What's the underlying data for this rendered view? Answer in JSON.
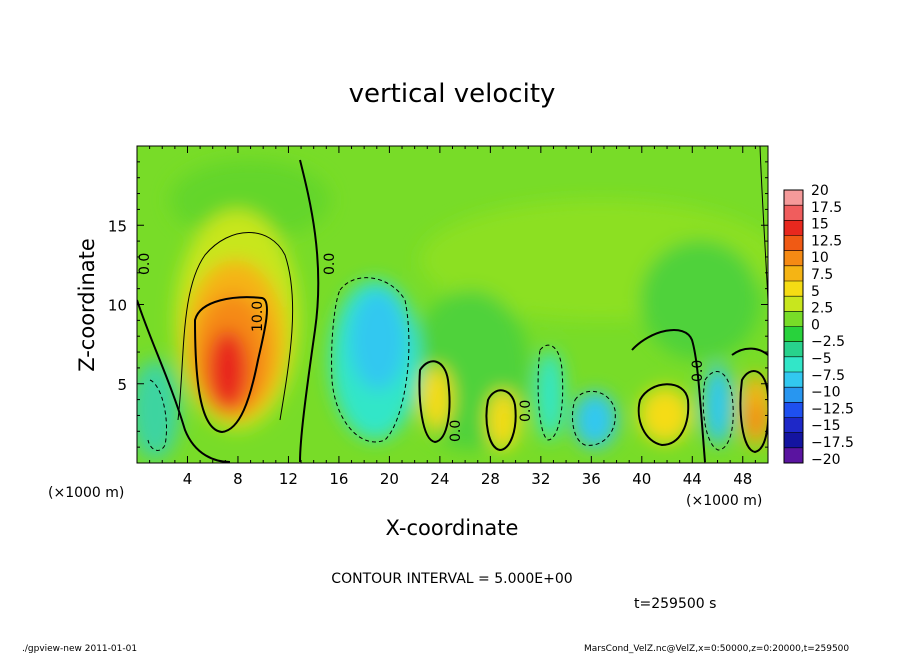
{
  "chart_data": {
    "type": "heatmap",
    "title": "vertical velocity",
    "xlabel": "X-coordinate",
    "ylabel": "Z-coordinate",
    "x_unit": "(×1000 m)",
    "z_unit": "(×1000 m)",
    "xlim": [
      0,
      50
    ],
    "ylim": [
      0,
      20
    ],
    "x_ticks": [
      "4",
      "8",
      "12",
      "16",
      "20",
      "24",
      "28",
      "32",
      "36",
      "40",
      "44",
      "48"
    ],
    "y_ticks": [
      "5",
      "10",
      "15"
    ],
    "colorbar_ticks": [
      "20",
      "17.5",
      "15",
      "12.5",
      "10",
      "7.5",
      "5",
      "2.5",
      "0",
      "−2.5",
      "−5",
      "−7.5",
      "−10",
      "−12.5",
      "−15",
      "−17.5",
      "−20"
    ],
    "colorbar_colors": [
      "#f59a9a",
      "#f05d5d",
      "#e8281e",
      "#f05a14",
      "#f58a14",
      "#f5b414",
      "#f5dc14",
      "#c8e61e",
      "#78dc28",
      "#28d23c",
      "#28d28c",
      "#32e6c8",
      "#32c8f0",
      "#2896f0",
      "#1e50f0",
      "#1e28c8",
      "#1414a0",
      "#5a14a0"
    ],
    "contour_interval_text": "CONTOUR INTERVAL = 5.000E+00",
    "contour_labels": [
      "10.0",
      "0.0",
      "0.0",
      "0.0",
      "0.0",
      "0.0"
    ],
    "time_text": "t=259500 s",
    "features": [
      {
        "name": "updraft",
        "x": 7.5,
        "z": 6.5,
        "peak": 13.5
      },
      {
        "name": "downdraft",
        "x": 19.5,
        "z": 7.5,
        "peak": -7
      },
      {
        "name": "updraft",
        "x": 23.5,
        "z": 4.2,
        "peak": 7
      },
      {
        "name": "updraft",
        "x": 29.0,
        "z": 3.0,
        "peak": 7
      },
      {
        "name": "downdraft",
        "x": 33.0,
        "z": 4.5,
        "peak": -6
      },
      {
        "name": "downdraft",
        "x": 36.0,
        "z": 3.0,
        "peak": -6
      },
      {
        "name": "updraft",
        "x": 41.0,
        "z": 3.5,
        "peak": 7
      },
      {
        "name": "downdraft",
        "x": 45.5,
        "z": 3.5,
        "peak": -7
      },
      {
        "name": "updraft",
        "x": 48.5,
        "z": 3.0,
        "peak": 10
      }
    ]
  },
  "footer": {
    "left": "./gpview-new   2011-01-01",
    "right": "MarsCond_VelZ.nc@VelZ,x=0:50000,z=0:20000,t=259500"
  },
  "colors": {
    "background_field": "#78dc28",
    "contour": "#000000"
  }
}
